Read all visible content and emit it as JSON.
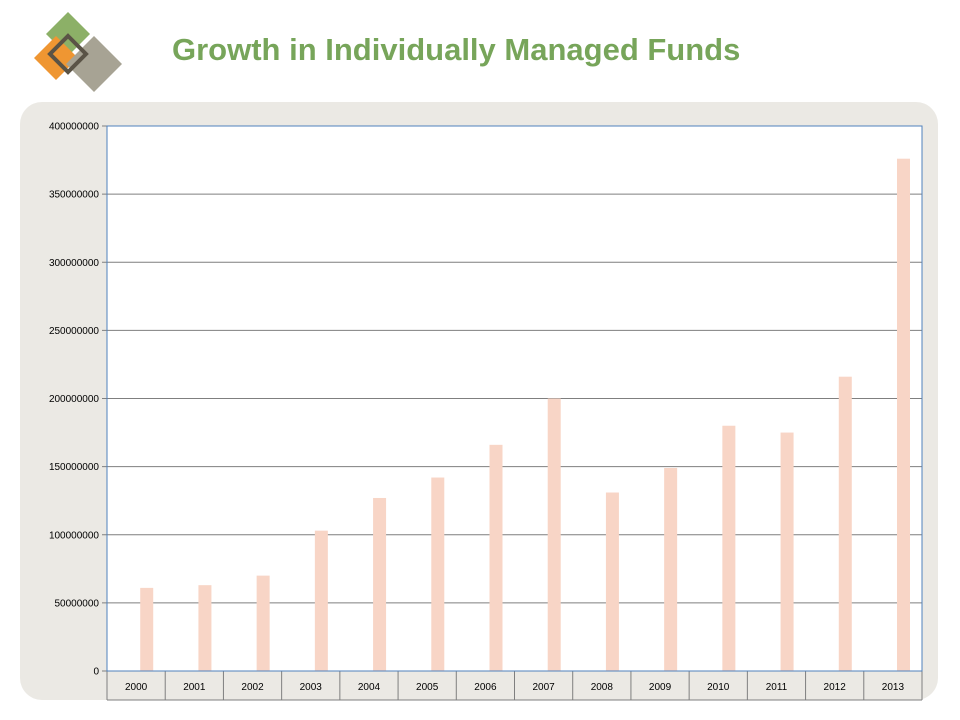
{
  "header": {
    "title": "Growth in Individually Managed Funds"
  },
  "logo": {
    "icon": "overlapping-diamonds-logo-icon"
  },
  "colors": {
    "title": "#77a55a",
    "bar": "#f8d5c6",
    "panel": "#ebe9e4",
    "gridline": "#7f7f7f",
    "plot_border": "#4f81bd",
    "logo_green": "#8cb067",
    "logo_orange": "#ef9632",
    "logo_gray": "#a7a394",
    "logo_outline": "#5a5346"
  },
  "chart_data": {
    "type": "bar",
    "title": "",
    "xlabel": "",
    "ylabel": "",
    "categories": [
      "2000",
      "2001",
      "2002",
      "2003",
      "2004",
      "2005",
      "2006",
      "2007",
      "2008",
      "2009",
      "2010",
      "2011",
      "2012",
      "2013"
    ],
    "values": [
      61000000,
      63000000,
      70000000,
      103000000,
      127000000,
      142000000,
      166000000,
      200000000,
      131000000,
      149000000,
      180000000,
      175000000,
      216000000,
      376000000
    ],
    "ylim": [
      0,
      400000000
    ],
    "yticks": [
      "0",
      "50000000",
      "100000000",
      "150000000",
      "200000000",
      "250000000",
      "300000000",
      "350000000",
      "400000000"
    ],
    "grid": true,
    "legend": "none"
  }
}
